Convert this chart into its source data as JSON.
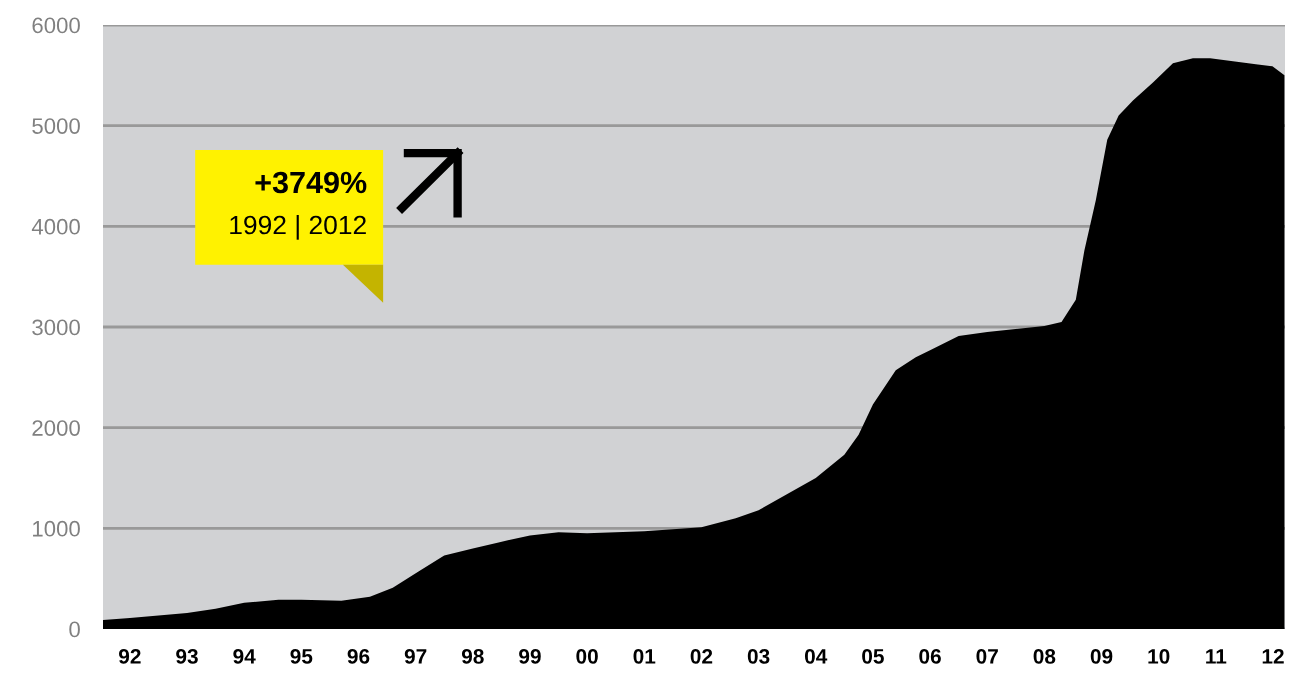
{
  "chart_data": {
    "type": "area",
    "color": "#000000",
    "grid": "y",
    "legend": false,
    "x": [
      1991.53,
      1992,
      1993,
      1993.5,
      1994,
      1994.6,
      1995,
      1995.7,
      1996.2,
      1996.6,
      1997.05,
      1997.5,
      1998,
      1998.45,
      1999,
      1999.5,
      2000,
      2001,
      2002,
      2002.6,
      2003,
      2004,
      2004.5,
      2004.75,
      2005,
      2005.4,
      2005.75,
      2006,
      2006.5,
      2007,
      2008,
      2008.3,
      2008.55,
      2008.7,
      2008.9,
      2009.1,
      2009.3,
      2009.55,
      2009.9,
      2010.25,
      2010.6,
      2010.9,
      2011.3,
      2011.7,
      2011.99,
      2012.2
    ],
    "values": [
      90,
      110,
      160,
      200,
      260,
      290,
      290,
      280,
      320,
      410,
      570,
      730,
      800,
      860,
      930,
      960,
      950,
      970,
      1010,
      1100,
      1180,
      1500,
      1730,
      1930,
      2230,
      2570,
      2700,
      2770,
      2910,
      2950,
      3010,
      3050,
      3270,
      3760,
      4260,
      4860,
      5100,
      5250,
      5430,
      5620,
      5670,
      5670,
      5640,
      5610,
      5590,
      5500
    ],
    "xlim": [
      1991.53,
      2012.21
    ],
    "ylim": [
      0,
      6000
    ],
    "yticks": [
      0,
      1000,
      2000,
      3000,
      4000,
      5000,
      6000
    ],
    "xticks": [
      {
        "value": 1992,
        "label": "92"
      },
      {
        "value": 1993,
        "label": "93"
      },
      {
        "value": 1994,
        "label": "94"
      },
      {
        "value": 1995,
        "label": "95"
      },
      {
        "value": 1996,
        "label": "96"
      },
      {
        "value": 1997,
        "label": "97"
      },
      {
        "value": 1998,
        "label": "98"
      },
      {
        "value": 1999,
        "label": "99"
      },
      {
        "value": 2000,
        "label": "00"
      },
      {
        "value": 2001,
        "label": "01"
      },
      {
        "value": 2002,
        "label": "02"
      },
      {
        "value": 2003,
        "label": "03"
      },
      {
        "value": 2004,
        "label": "04"
      },
      {
        "value": 2005,
        "label": "05"
      },
      {
        "value": 2006,
        "label": "06"
      },
      {
        "value": 2007,
        "label": "07"
      },
      {
        "value": 2008,
        "label": "08"
      },
      {
        "value": 2009,
        "label": "09"
      },
      {
        "value": 2010,
        "label": "10"
      },
      {
        "value": 2011,
        "label": "11"
      },
      {
        "value": 2012,
        "label": "12"
      }
    ],
    "annotations": [
      "+3749%",
      "1992 | 2012"
    ]
  }
}
